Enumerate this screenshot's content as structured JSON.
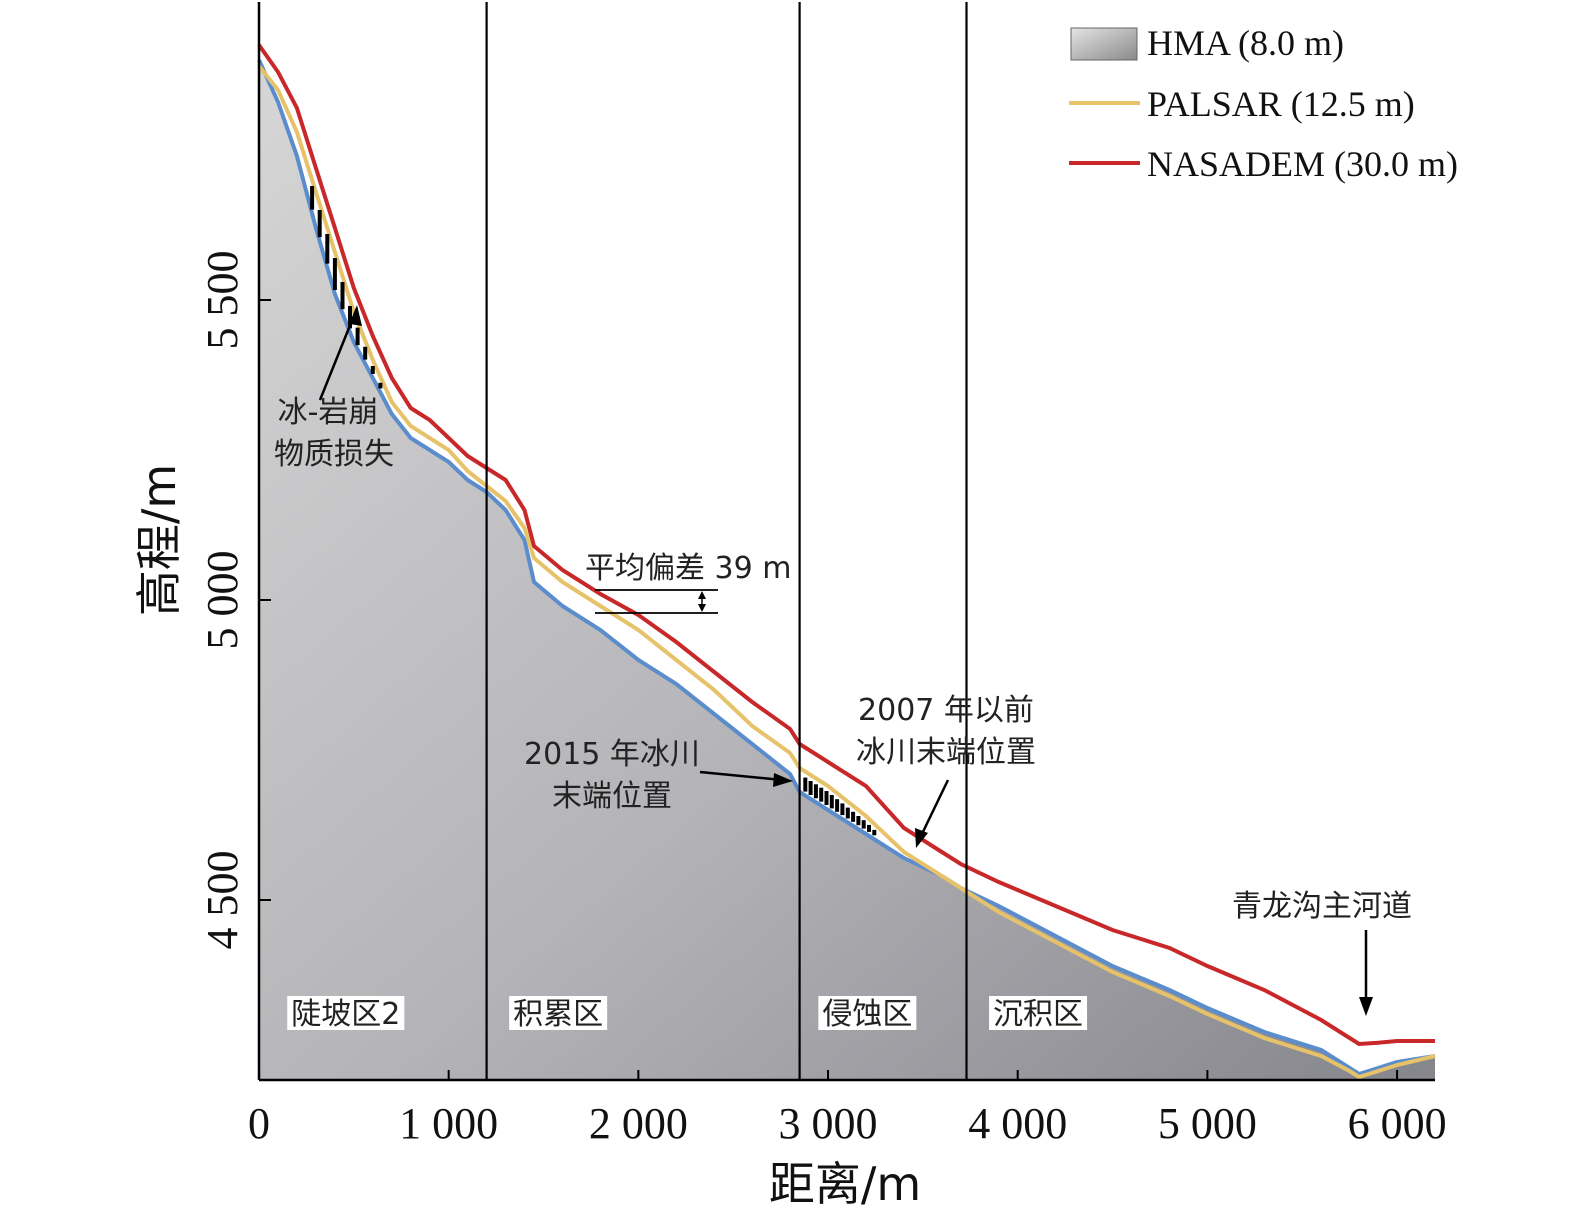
{
  "chart_data": {
    "type": "area",
    "title": "",
    "xlabel": "距离/m",
    "ylabel": "高程/m",
    "xlim": [
      0,
      6200
    ],
    "ylim": [
      4200,
      5950
    ],
    "x_ticks": [
      0,
      1000,
      2000,
      3000,
      4000,
      5000,
      6000
    ],
    "x_tick_labels": [
      "0",
      "1 000",
      "2 000",
      "3 000",
      "4 000",
      "5 000",
      "6 000"
    ],
    "y_ticks": [
      4500,
      5000,
      5500
    ],
    "y_tick_labels": [
      "4 500",
      "5 000",
      "5 500"
    ],
    "legend_position": "top-right",
    "series": [
      {
        "name": "HMA (8.0 m)",
        "color": "#9a9a9a",
        "outline_color": "#5b8ccc",
        "x": [
          0,
          100,
          200,
          300,
          400,
          500,
          600,
          700,
          800,
          900,
          1000,
          1100,
          1200,
          1300,
          1400,
          1450,
          1600,
          1800,
          2000,
          2200,
          2400,
          2600,
          2800,
          2850,
          3000,
          3200,
          3400,
          3600,
          3700,
          3900,
          4200,
          4500,
          4800,
          5000,
          5300,
          5600,
          5750,
          5800,
          5900,
          6000,
          6200
        ],
        "values": [
          5900,
          5830,
          5740,
          5620,
          5510,
          5430,
          5370,
          5310,
          5270,
          5250,
          5230,
          5200,
          5180,
          5150,
          5100,
          5030,
          4990,
          4950,
          4900,
          4860,
          4810,
          4760,
          4710,
          4680,
          4650,
          4610,
          4570,
          4540,
          4520,
          4490,
          4440,
          4390,
          4350,
          4320,
          4280,
          4250,
          4220,
          4210,
          4220,
          4230,
          4240
        ]
      },
      {
        "name": "PALSAR (12.5 m)",
        "color": "#e6c26a",
        "x": [
          0,
          100,
          200,
          300,
          400,
          500,
          600,
          700,
          800,
          900,
          1000,
          1100,
          1200,
          1300,
          1400,
          1450,
          1600,
          1800,
          2000,
          2200,
          2400,
          2600,
          2800,
          2850,
          3000,
          3200,
          3400,
          3600,
          3700,
          3900,
          4200,
          4500,
          4800,
          5000,
          5300,
          5600,
          5750,
          5800,
          5900,
          6000,
          6200
        ],
        "values": [
          5890,
          5850,
          5780,
          5680,
          5580,
          5480,
          5400,
          5330,
          5290,
          5270,
          5250,
          5215,
          5190,
          5165,
          5120,
          5070,
          5030,
          4990,
          4950,
          4900,
          4850,
          4790,
          4745,
          4720,
          4690,
          4640,
          4580,
          4540,
          4520,
          4480,
          4430,
          4380,
          4340,
          4310,
          4270,
          4240,
          4215,
          4205,
          4215,
          4225,
          4240
        ]
      },
      {
        "name": "NASADEM (30.0 m)",
        "color": "#c8282a",
        "x": [
          0,
          100,
          200,
          300,
          400,
          500,
          600,
          700,
          800,
          900,
          1000,
          1100,
          1200,
          1300,
          1400,
          1450,
          1600,
          1800,
          2000,
          2200,
          2400,
          2600,
          2800,
          2850,
          3000,
          3200,
          3400,
          3600,
          3700,
          3900,
          4200,
          4500,
          4800,
          5000,
          5300,
          5600,
          5750,
          5800,
          5900,
          6000,
          6200
        ],
        "values": [
          5925,
          5880,
          5820,
          5720,
          5620,
          5520,
          5440,
          5370,
          5320,
          5300,
          5270,
          5240,
          5220,
          5200,
          5150,
          5090,
          5050,
          5010,
          4975,
          4930,
          4880,
          4830,
          4785,
          4760,
          4730,
          4690,
          4620,
          4580,
          4560,
          4530,
          4490,
          4450,
          4420,
          4390,
          4350,
          4300,
          4270,
          4260,
          4262,
          4265,
          4265
        ]
      }
    ],
    "zone_boundaries": [
      1200,
      2850,
      3730
    ],
    "zones": [
      {
        "label": "陡坡区2",
        "x": 170
      },
      {
        "label": "积累区",
        "x": 1340
      },
      {
        "label": "侵蚀区",
        "x": 2970
      },
      {
        "label": "沉积区",
        "x": 3870
      }
    ],
    "annotations": {
      "ice_rock_loss_line1": "冰-岩崩",
      "ice_rock_loss_line2": "物质损失",
      "mean_bias": "平均偏差 39 m",
      "terminus_2015_line1": "2015 年冰川",
      "terminus_2015_line2": "末端位置",
      "terminus_pre2007_line1": "2007 年以前",
      "terminus_pre2007_line2": "冰川末端位置",
      "main_channel": "青龙沟主河道"
    }
  }
}
